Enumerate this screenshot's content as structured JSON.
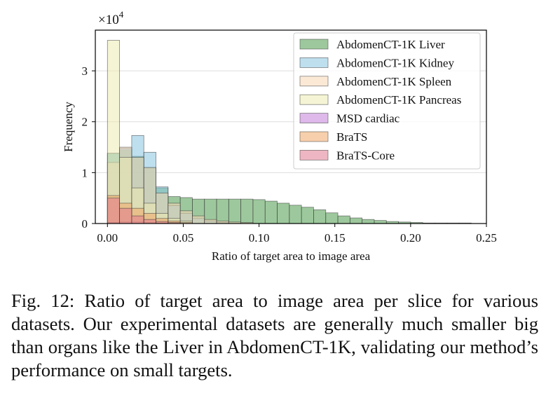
{
  "chart_data": {
    "type": "bar",
    "subtype": "overlapping-histogram",
    "title": "",
    "xlabel": "Ratio of target area to image area",
    "ylabel": "Frequency",
    "y_scale_label": "×10",
    "y_scale_exponent": "4",
    "xlim": [
      -0.008,
      0.25
    ],
    "ylim": [
      0,
      3.8
    ],
    "x_ticks": [
      0.0,
      0.05,
      0.1,
      0.15,
      0.2,
      0.25
    ],
    "x_tick_labels": [
      "0.00",
      "0.05",
      "0.10",
      "0.15",
      "0.20",
      "0.25"
    ],
    "y_ticks": [
      0,
      1,
      2,
      3
    ],
    "y_tick_labels": [
      "0",
      "1",
      "2",
      "3"
    ],
    "grid": "horizontal",
    "legend_position": "top-right",
    "bin_width": 0.008,
    "bin_start": 0.0,
    "series": [
      {
        "name": "AbdomenCT-1K Liver",
        "color": "#4c9a4c",
        "values": [
          1.38,
          1.45,
          1.32,
          1.1,
          0.7,
          0.53,
          0.51,
          0.48,
          0.48,
          0.48,
          0.48,
          0.48,
          0.47,
          0.44,
          0.4,
          0.36,
          0.32,
          0.27,
          0.21,
          0.15,
          0.11,
          0.08,
          0.06,
          0.04,
          0.03,
          0.02,
          0.01,
          0.01,
          0.01,
          0.01
        ]
      },
      {
        "name": "AbdomenCT-1K Kidney",
        "color": "#88c4e0",
        "values": [
          1.38,
          1.48,
          1.73,
          1.4,
          0.72,
          0.35,
          0.2,
          0.1,
          0.05,
          0.02
        ]
      },
      {
        "name": "AbdomenCT-1K Spleen",
        "color": "#f7d7b5",
        "values": [
          1.2,
          1.5,
          1.3,
          1.1,
          0.6,
          0.4,
          0.25,
          0.15,
          0.08,
          0.05,
          0.03,
          0.02
        ]
      },
      {
        "name": "AbdomenCT-1K Pancreas",
        "color": "#ecebb0",
        "values": [
          3.6,
          1.3,
          0.7,
          0.4,
          0.2,
          0.1,
          0.05
        ]
      },
      {
        "name": "MSD cardiac",
        "color": "#c27fd9",
        "values": [
          0.02,
          0.03,
          0.03,
          0.02,
          0.01
        ]
      },
      {
        "name": "BraTS",
        "color": "#f0a868",
        "values": [
          0.55,
          0.4,
          0.3,
          0.2,
          0.1,
          0.05,
          0.02
        ]
      },
      {
        "name": "BraTS-Core",
        "color": "#e07a8f",
        "values": [
          0.5,
          0.3,
          0.15,
          0.08,
          0.04,
          0.02
        ]
      }
    ]
  },
  "caption": "Fig. 12: Ratio of target area to image area per slice for various datasets. Our experimental datasets are generally much smaller big than organs like the Liver in AbdomenCT-1K, validating our method’s performance on small targets."
}
